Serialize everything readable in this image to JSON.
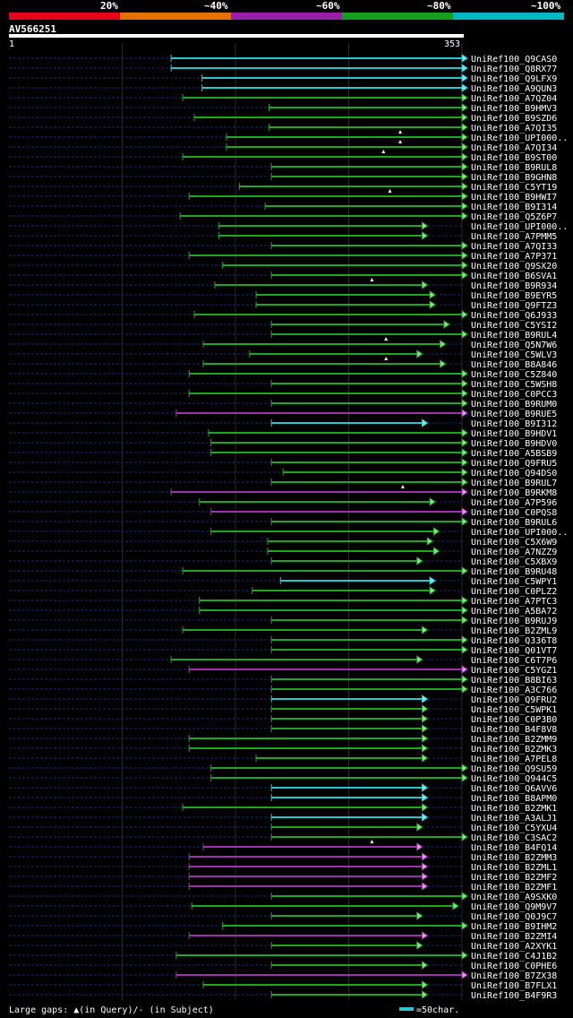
{
  "chart_data": {
    "type": "alignment",
    "title": "AV566251",
    "query_length": 353,
    "axis": {
      "start_label": "1",
      "end_label": "353"
    },
    "legend": [
      {
        "label": "20%",
        "color": "#e8001c"
      },
      {
        "label": "~40%",
        "color": "#e87000"
      },
      {
        "label": "~60%",
        "color": "#9c1cac"
      },
      {
        "label": "~80%",
        "color": "#14a01c"
      },
      {
        "label": "~100%",
        "color": "#00b8c0"
      }
    ],
    "colors": {
      "cyan": "#22c8d2",
      "green": "#1da81d",
      "magenta": "#a030b0",
      "dashed": "#1a2a78",
      "arrow_fill": "#90e090",
      "arrow_fill_cyan": "#80e8ec",
      "arrow_fill_magenta": "#e0a0e8"
    },
    "hits": [
      {
        "name": "UniRef100_Q9CAS0",
        "start": 127,
        "end": 353,
        "color": "cyan",
        "gap": null
      },
      {
        "name": "UniRef100_Q8RX77",
        "start": 127,
        "end": 353,
        "color": "cyan",
        "gap": null
      },
      {
        "name": "UniRef100_Q9LFX9",
        "start": 151,
        "end": 353,
        "color": "cyan",
        "gap": null
      },
      {
        "name": "UniRef100_A9QUN3",
        "start": 151,
        "end": 353,
        "color": "cyan",
        "gap": null
      },
      {
        "name": "UniRef100_A7QZ04",
        "start": 136,
        "end": 353,
        "color": "green",
        "gap": null
      },
      {
        "name": "UniRef100_B9HMV3",
        "start": 203,
        "end": 353,
        "color": "green",
        "gap": null
      },
      {
        "name": "UniRef100_B9SZD6",
        "start": 145,
        "end": 353,
        "color": "green",
        "gap": null
      },
      {
        "name": "UniRef100_A7QI35",
        "start": 203,
        "end": 353,
        "color": "green",
        "gap": null
      },
      {
        "name": "UniRef100_UPI000..",
        "start": 170,
        "end": 353,
        "color": "green",
        "gap": 305
      },
      {
        "name": "UniRef100_A7QI34",
        "start": 170,
        "end": 353,
        "color": "green",
        "gap": 305
      },
      {
        "name": "UniRef100_B9ST00",
        "start": 136,
        "end": 353,
        "color": "green",
        "gap": 292
      },
      {
        "name": "UniRef100_B9RUL8",
        "start": 205,
        "end": 353,
        "color": "green",
        "gap": null
      },
      {
        "name": "UniRef100_B9GHN8",
        "start": 205,
        "end": 353,
        "color": "green",
        "gap": null
      },
      {
        "name": "UniRef100_C5YT19",
        "start": 180,
        "end": 353,
        "color": "green",
        "gap": null
      },
      {
        "name": "UniRef100_B9HWI7",
        "start": 141,
        "end": 353,
        "color": "green",
        "gap": 297
      },
      {
        "name": "UniRef100_B9I314",
        "start": 200,
        "end": 353,
        "color": "green",
        "gap": null
      },
      {
        "name": "UniRef100_Q5Z6P7",
        "start": 134,
        "end": 353,
        "color": "green",
        "gap": null
      },
      {
        "name": "UniRef100_UPI000..",
        "start": 164,
        "end": 322,
        "color": "green",
        "gap": null
      },
      {
        "name": "UniRef100_A7PMM5",
        "start": 164,
        "end": 322,
        "color": "green",
        "gap": null
      },
      {
        "name": "UniRef100_A7QI33",
        "start": 205,
        "end": 353,
        "color": "green",
        "gap": null
      },
      {
        "name": "UniRef100_A7P371",
        "start": 141,
        "end": 353,
        "color": "green",
        "gap": null
      },
      {
        "name": "UniRef100_Q9SX20",
        "start": 167,
        "end": 353,
        "color": "green",
        "gap": null
      },
      {
        "name": "UniRef100_B6SVA1",
        "start": 205,
        "end": 353,
        "color": "green",
        "gap": null
      },
      {
        "name": "UniRef100_B9R934",
        "start": 161,
        "end": 322,
        "color": "green",
        "gap": 283
      },
      {
        "name": "UniRef100_B9EYR5",
        "start": 193,
        "end": 328,
        "color": "green",
        "gap": null
      },
      {
        "name": "UniRef100_Q9FTZ3",
        "start": 193,
        "end": 328,
        "color": "green",
        "gap": null
      },
      {
        "name": "UniRef100_Q6J933",
        "start": 145,
        "end": 353,
        "color": "green",
        "gap": null
      },
      {
        "name": "UniRef100_C5YSI2",
        "start": 205,
        "end": 339,
        "color": "green",
        "gap": null
      },
      {
        "name": "UniRef100_B9RUL4",
        "start": 205,
        "end": 353,
        "color": "green",
        "gap": null
      },
      {
        "name": "UniRef100_Q5N7W6",
        "start": 152,
        "end": 336,
        "color": "green",
        "gap": 294
      },
      {
        "name": "UniRef100_C5WLV3",
        "start": 188,
        "end": 318,
        "color": "green",
        "gap": null
      },
      {
        "name": "UniRef100_B8A846",
        "start": 152,
        "end": 336,
        "color": "green",
        "gap": 294
      },
      {
        "name": "UniRef100_C5Z840",
        "start": 141,
        "end": 353,
        "color": "green",
        "gap": null
      },
      {
        "name": "UniRef100_C5WSH8",
        "start": 205,
        "end": 353,
        "color": "green",
        "gap": null
      },
      {
        "name": "UniRef100_C0PCC3",
        "start": 141,
        "end": 353,
        "color": "green",
        "gap": null
      },
      {
        "name": "UniRef100_B9RUM0",
        "start": 205,
        "end": 353,
        "color": "green",
        "gap": null
      },
      {
        "name": "UniRef100_B9RUE5",
        "start": 131,
        "end": 353,
        "color": "magenta",
        "gap": null
      },
      {
        "name": "UniRef100_B9I312",
        "start": 205,
        "end": 322,
        "color": "cyan",
        "gap": null
      },
      {
        "name": "UniRef100_B9HDV1",
        "start": 156,
        "end": 353,
        "color": "green",
        "gap": null
      },
      {
        "name": "UniRef100_B9HDV0",
        "start": 158,
        "end": 353,
        "color": "green",
        "gap": null
      },
      {
        "name": "UniRef100_A5BSB9",
        "start": 158,
        "end": 353,
        "color": "green",
        "gap": null
      },
      {
        "name": "UniRef100_Q9FRU5",
        "start": 205,
        "end": 353,
        "color": "green",
        "gap": null
      },
      {
        "name": "UniRef100_Q94DS0",
        "start": 214,
        "end": 353,
        "color": "green",
        "gap": null
      },
      {
        "name": "UniRef100_B9RUL7",
        "start": 205,
        "end": 353,
        "color": "green",
        "gap": null
      },
      {
        "name": "UniRef100_B9RKM8",
        "start": 127,
        "end": 353,
        "color": "magenta",
        "gap": 307
      },
      {
        "name": "UniRef100_A7P596",
        "start": 149,
        "end": 328,
        "color": "green",
        "gap": null
      },
      {
        "name": "UniRef100_C0PQS8",
        "start": 158,
        "end": 353,
        "color": "magenta",
        "gap": null
      },
      {
        "name": "UniRef100_B9RUL6",
        "start": 205,
        "end": 353,
        "color": "green",
        "gap": null
      },
      {
        "name": "UniRef100_UPI000..",
        "start": 158,
        "end": 331,
        "color": "green",
        "gap": null
      },
      {
        "name": "UniRef100_C5X6W9",
        "start": 202,
        "end": 326,
        "color": "green",
        "gap": null
      },
      {
        "name": "UniRef100_A7NZZ9",
        "start": 202,
        "end": 331,
        "color": "green",
        "gap": null
      },
      {
        "name": "UniRef100_C5XBX9",
        "start": 205,
        "end": 318,
        "color": "green",
        "gap": null
      },
      {
        "name": "UniRef100_B9RU48",
        "start": 136,
        "end": 353,
        "color": "green",
        "gap": null
      },
      {
        "name": "UniRef100_C5WPY1",
        "start": 212,
        "end": 328,
        "color": "cyan",
        "gap": null
      },
      {
        "name": "UniRef100_C0PLZ2",
        "start": 190,
        "end": 328,
        "color": "green",
        "gap": null
      },
      {
        "name": "UniRef100_A7PTC3",
        "start": 149,
        "end": 353,
        "color": "green",
        "gap": null
      },
      {
        "name": "UniRef100_A5BA72",
        "start": 149,
        "end": 353,
        "color": "green",
        "gap": null
      },
      {
        "name": "UniRef100_B9RUJ9",
        "start": 205,
        "end": 353,
        "color": "green",
        "gap": null
      },
      {
        "name": "UniRef100_B2ZML9",
        "start": 136,
        "end": 322,
        "color": "green",
        "gap": null
      },
      {
        "name": "UniRef100_Q336T8",
        "start": 205,
        "end": 353,
        "color": "green",
        "gap": null
      },
      {
        "name": "UniRef100_Q01VT7",
        "start": 205,
        "end": 353,
        "color": "green",
        "gap": null
      },
      {
        "name": "UniRef100_C6T7P6",
        "start": 127,
        "end": 318,
        "color": "green",
        "gap": null
      },
      {
        "name": "UniRef100_C5YGZ1",
        "start": 141,
        "end": 353,
        "color": "magenta",
        "gap": null
      },
      {
        "name": "UniRef100_B8BI63",
        "start": 205,
        "end": 353,
        "color": "green",
        "gap": null
      },
      {
        "name": "UniRef100_A3C766",
        "start": 205,
        "end": 353,
        "color": "green",
        "gap": null
      },
      {
        "name": "UniRef100_Q9FRU2",
        "start": 205,
        "end": 322,
        "color": "cyan",
        "gap": null
      },
      {
        "name": "UniRef100_C5WPK1",
        "start": 205,
        "end": 322,
        "color": "green",
        "gap": null
      },
      {
        "name": "UniRef100_C0P3B0",
        "start": 205,
        "end": 322,
        "color": "green",
        "gap": null
      },
      {
        "name": "UniRef100_B4F8V8",
        "start": 205,
        "end": 322,
        "color": "green",
        "gap": null
      },
      {
        "name": "UniRef100_B2ZMM9",
        "start": 141,
        "end": 322,
        "color": "green",
        "gap": null
      },
      {
        "name": "UniRef100_B2ZMK3",
        "start": 141,
        "end": 322,
        "color": "green",
        "gap": null
      },
      {
        "name": "UniRef100_A7PEL8",
        "start": 193,
        "end": 322,
        "color": "green",
        "gap": null
      },
      {
        "name": "UniRef100_Q9SU59",
        "start": 158,
        "end": 353,
        "color": "green",
        "gap": null
      },
      {
        "name": "UniRef100_Q944C5",
        "start": 158,
        "end": 353,
        "color": "green",
        "gap": null
      },
      {
        "name": "UniRef100_Q6AVV6",
        "start": 205,
        "end": 322,
        "color": "cyan",
        "gap": null
      },
      {
        "name": "UniRef100_B8APM0",
        "start": 205,
        "end": 322,
        "color": "cyan",
        "gap": null
      },
      {
        "name": "UniRef100_B2ZMK1",
        "start": 136,
        "end": 322,
        "color": "green",
        "gap": null
      },
      {
        "name": "UniRef100_A3ALJ1",
        "start": 205,
        "end": 322,
        "color": "cyan",
        "gap": null
      },
      {
        "name": "UniRef100_C5YXU4",
        "start": 205,
        "end": 318,
        "color": "green",
        "gap": null
      },
      {
        "name": "UniRef100_C3SAC2",
        "start": 205,
        "end": 353,
        "color": "green",
        "gap": null
      },
      {
        "name": "UniRef100_B4FQ14",
        "start": 152,
        "end": 318,
        "color": "magenta",
        "gap": 283
      },
      {
        "name": "UniRef100_B2ZMM3",
        "start": 141,
        "end": 322,
        "color": "magenta",
        "gap": null
      },
      {
        "name": "UniRef100_B2ZML1",
        "start": 141,
        "end": 322,
        "color": "magenta",
        "gap": null
      },
      {
        "name": "UniRef100_B2ZMF2",
        "start": 141,
        "end": 322,
        "color": "magenta",
        "gap": null
      },
      {
        "name": "UniRef100_B2ZMF1",
        "start": 141,
        "end": 322,
        "color": "magenta",
        "gap": null
      },
      {
        "name": "UniRef100_A9SXK0",
        "start": 205,
        "end": 353,
        "color": "green",
        "gap": null
      },
      {
        "name": "UniRef100_Q9M9V7",
        "start": 143,
        "end": 346,
        "color": "green",
        "gap": null
      },
      {
        "name": "UniRef100_Q0J9C7",
        "start": 205,
        "end": 318,
        "color": "green",
        "gap": null
      },
      {
        "name": "UniRef100_B9IHM2",
        "start": 167,
        "end": 353,
        "color": "green",
        "gap": null
      },
      {
        "name": "UniRef100_B2ZMI4",
        "start": 141,
        "end": 322,
        "color": "magenta",
        "gap": null
      },
      {
        "name": "UniRef100_A2XYK1",
        "start": 205,
        "end": 318,
        "color": "green",
        "gap": null
      },
      {
        "name": "UniRef100_C4J1B2",
        "start": 131,
        "end": 353,
        "color": "green",
        "gap": null
      },
      {
        "name": "UniRef100_C0PHE6",
        "start": 205,
        "end": 322,
        "color": "green",
        "gap": null
      },
      {
        "name": "UniRef100_B7ZX38",
        "start": 131,
        "end": 353,
        "color": "magenta",
        "gap": null
      },
      {
        "name": "UniRef100_B7FLX1",
        "start": 152,
        "end": 322,
        "color": "green",
        "gap": null
      },
      {
        "name": "UniRef100_B4F9R3",
        "start": 205,
        "end": 322,
        "color": "green",
        "gap": null
      }
    ]
  },
  "footer": {
    "gaps_text": "Large gaps: ▲(in Query)/- (in Subject)",
    "scale_text": "=50char."
  }
}
